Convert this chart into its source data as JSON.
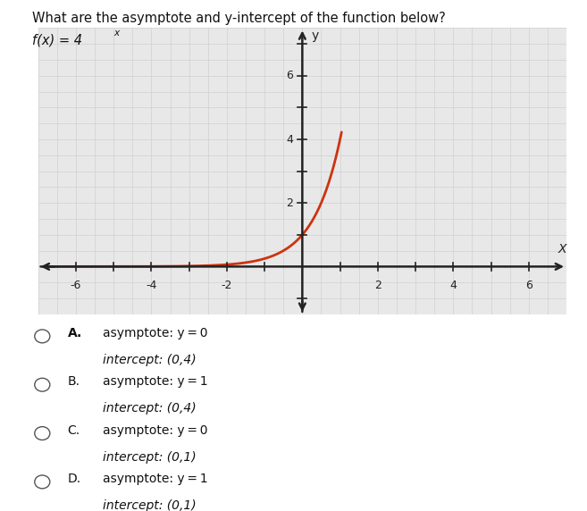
{
  "title": "What are the asymptote and y-intercept of the function below?",
  "func_base": "f(x) = 4",
  "func_exp": "x",
  "background_color": "#ffffff",
  "plot_bg_color": "#e8e8e8",
  "curve_color": "#cc3311",
  "grid_minor_color": "#d0d0d0",
  "grid_major_color": "#bbbbbb",
  "axis_color": "#222222",
  "xlim": [
    -7,
    7
  ],
  "ylim": [
    -1.5,
    7.5
  ],
  "xticks": [
    -6,
    -4,
    -2,
    2,
    4,
    6
  ],
  "yticks": [
    2,
    4,
    6
  ],
  "curve_xmax": 1.04,
  "options": [
    {
      "letter": "A",
      "bold": true,
      "line1": "asymptote: y = 0",
      "line2": "intercept: (0,4)"
    },
    {
      "letter": "B",
      "bold": false,
      "line1": "asymptote: y = 1",
      "line2": "intercept: (0,4)"
    },
    {
      "letter": "C",
      "bold": false,
      "line1": "asymptote: y = 0",
      "line2": "intercept: (0,1)"
    },
    {
      "letter": "D",
      "bold": false,
      "line1": "asymptote: y = 1",
      "line2": "intercept: (0,1)"
    }
  ]
}
